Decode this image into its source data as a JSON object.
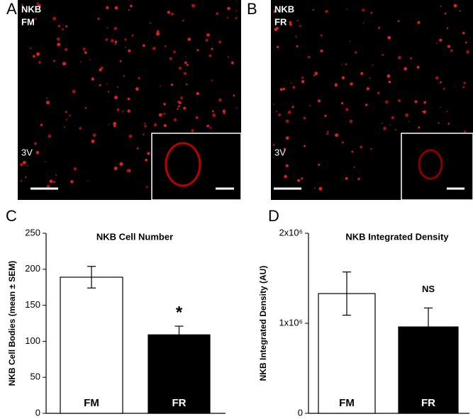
{
  "panels": [
    {
      "letter": "A",
      "label1": "NKB",
      "label2": "FM",
      "region": "3V"
    },
    {
      "letter": "B",
      "label1": "NKB",
      "label2": "FR",
      "region": "3V"
    }
  ],
  "chart_data": [
    {
      "type": "bar",
      "panel_label": "C",
      "title": "NKB Cell Number",
      "ylabel": "NKB Cell Bodies (mean ± SEM)",
      "categories": [
        "FM",
        "FR"
      ],
      "values": [
        189,
        109
      ],
      "errors": [
        15,
        12
      ],
      "colors": [
        "#ffffff",
        "#000000"
      ],
      "ylim": [
        0,
        250
      ],
      "yticks": [
        0,
        50,
        100,
        150,
        200,
        250
      ],
      "annotations": [
        {
          "category": 1,
          "text": "*"
        }
      ]
    },
    {
      "type": "bar",
      "panel_label": "D",
      "title": "NKB Integrated Density",
      "ylabel": "NKB Integrated Density (AU)",
      "categories": [
        "FM",
        "FR"
      ],
      "values": [
        1330000,
        960000
      ],
      "errors": [
        240000,
        210000
      ],
      "colors": [
        "#ffffff",
        "#000000"
      ],
      "ylim": [
        0,
        2000000
      ],
      "yticks": [
        0,
        {
          "value": 1000000,
          "label": "1x10⁶"
        },
        {
          "value": 2000000,
          "label": "2x10⁶"
        }
      ],
      "annotations": [
        {
          "category": 1,
          "text": "NS"
        }
      ]
    }
  ]
}
